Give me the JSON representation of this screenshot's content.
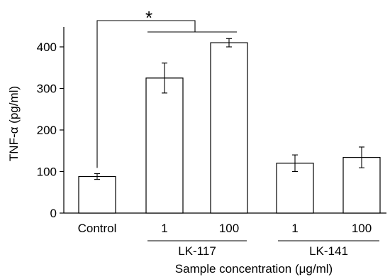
{
  "chart_data": {
    "type": "bar",
    "ylabel": "TNF-α (pg/ml)",
    "xlabel": "Sample concentration (μg/ml)",
    "ylim": [
      0,
      480
    ],
    "yticks": [
      0,
      100,
      200,
      300,
      400
    ],
    "bars": [
      {
        "label": "Control",
        "group": "",
        "value": 88,
        "error": 7
      },
      {
        "label": "1",
        "group": "LK-117",
        "value": 325,
        "error": 36
      },
      {
        "label": "100",
        "group": "LK-117",
        "value": 410,
        "error": 10
      },
      {
        "label": "1",
        "group": "LK-141",
        "value": 120,
        "error": 20
      },
      {
        "label": "100",
        "group": "LK-141",
        "value": 134,
        "error": 25
      }
    ],
    "groups": [
      "LK-117",
      "LK-141"
    ],
    "significance": "*",
    "grid": false
  }
}
